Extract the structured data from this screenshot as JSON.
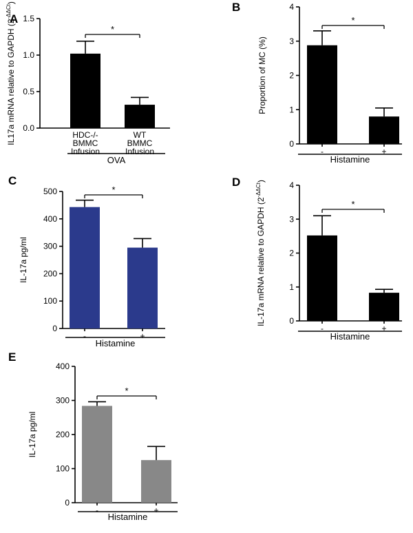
{
  "panels": [
    {
      "label": "A",
      "ylabel": "IL17a mRNA relative to GAPDH (2",
      "ylabel_sup": "-ΔΔCt",
      "ylabel_close": ")",
      "group_label": "OVA",
      "significance": "*"
    },
    {
      "label": "B",
      "ylabel": "Proportion of MC (%)",
      "group_label": "Histamine",
      "significance": "*"
    },
    {
      "label": "C",
      "ylabel": "IL-17a pg/ml",
      "group_label": "Histamine",
      "significance": "*"
    },
    {
      "label": "D",
      "ylabel": "IL-17a mRNA relative to GAPDH (2",
      "ylabel_sup": "-ΔΔCt",
      "ylabel_close": ")",
      "group_label": "Histamine",
      "significance": "*"
    },
    {
      "label": "E",
      "ylabel": "IL-17a pg/ml",
      "group_label": "Histamine",
      "significance": "*"
    }
  ],
  "chart_data": [
    {
      "type": "bar",
      "categories": [
        "HDC-/- BMMC Infusion",
        "WT BMMC Infusion"
      ],
      "category_lines": [
        [
          "HDC-/-",
          "BMMC",
          "Infusion"
        ],
        [
          "WT",
          "BMMC",
          "Infusion"
        ]
      ],
      "values": [
        1.02,
        0.32
      ],
      "errors": [
        0.17,
        0.1
      ],
      "ylim": [
        0,
        1.5
      ],
      "yticks": [
        "0.0",
        "0.5",
        "1.0",
        "1.5"
      ],
      "color": "#000000"
    },
    {
      "type": "bar",
      "categories": [
        "-",
        "+"
      ],
      "values": [
        2.88,
        0.8
      ],
      "errors": [
        0.42,
        0.25
      ],
      "ylim": [
        0,
        4
      ],
      "yticks": [
        "0",
        "1",
        "2",
        "3",
        "4"
      ],
      "color": "#000000"
    },
    {
      "type": "bar",
      "categories": [
        "-",
        "+"
      ],
      "values": [
        443,
        295
      ],
      "errors": [
        25,
        33
      ],
      "ylim": [
        0,
        500
      ],
      "yticks": [
        "0",
        "100",
        "200",
        "300",
        "400",
        "500"
      ],
      "color": "#2b3a8c"
    },
    {
      "type": "bar",
      "categories": [
        "-",
        "+"
      ],
      "values": [
        2.52,
        0.83
      ],
      "errors": [
        0.58,
        0.1
      ],
      "ylim": [
        0,
        4
      ],
      "yticks": [
        "0",
        "1",
        "2",
        "3",
        "4"
      ],
      "color": "#000000"
    },
    {
      "type": "bar",
      "categories": [
        "-",
        "+"
      ],
      "values": [
        284,
        125
      ],
      "errors": [
        12,
        40
      ],
      "ylim": [
        0,
        400
      ],
      "yticks": [
        "0",
        "100",
        "200",
        "300",
        "400"
      ],
      "color": "#888888"
    }
  ]
}
